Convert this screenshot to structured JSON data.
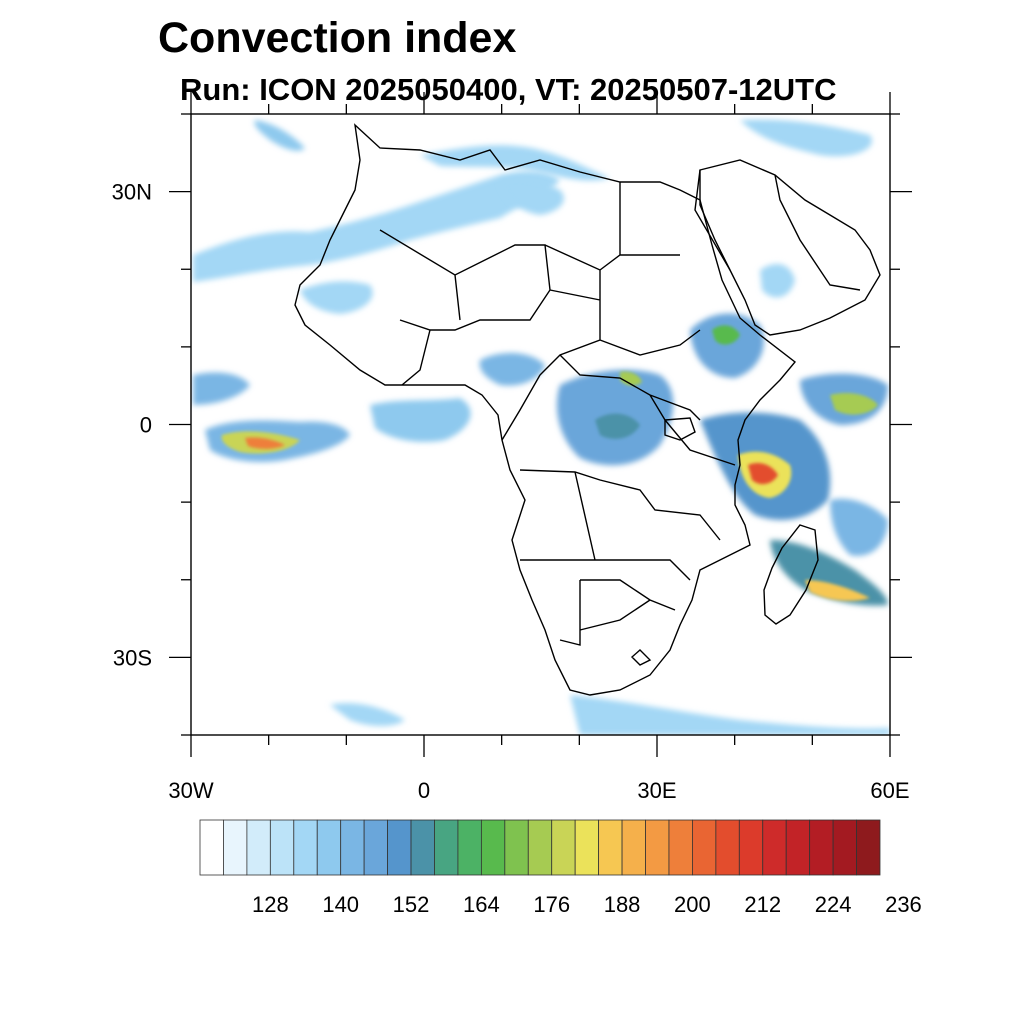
{
  "title": "Convection index",
  "subtitle": "Run: ICON 2025050400,  VT: 20250507-12UTC",
  "map": {
    "type": "geographic-map",
    "projection": "cylindrical equidistant",
    "lon_range": [
      -30,
      60
    ],
    "lat_range": [
      -40,
      40
    ],
    "lat_tick_labels": [
      {
        "lat": 30,
        "label": "30N"
      },
      {
        "lat": 0,
        "label": "0"
      },
      {
        "lat": -30,
        "label": "30S"
      }
    ],
    "lon_tick_labels": [
      {
        "lon": -30,
        "label": "30W"
      },
      {
        "lon": 0,
        "label": "0"
      },
      {
        "lon": 30,
        "label": "30E"
      },
      {
        "lon": 60,
        "label": "60E"
      }
    ],
    "minor_tick_step_deg": 10
  },
  "colorbar": {
    "colors": [
      "#ffffff",
      "#e8f5fd",
      "#d2ecfa",
      "#bce3f8",
      "#a3d7f5",
      "#8ec9ee",
      "#7ab6e4",
      "#6aa6da",
      "#5595cc",
      "#4b92a8",
      "#48a582",
      "#4cb265",
      "#58ba4d",
      "#7fc24f",
      "#a6cb52",
      "#c9d456",
      "#ebe25a",
      "#f6c752",
      "#f5b04b",
      "#f39a43",
      "#ee7f3a",
      "#e96533",
      "#e34d2d",
      "#dc3b2b",
      "#ce2b2a",
      "#c22327",
      "#b31d24",
      "#a31a21",
      "#8e1a1d"
    ],
    "tick_labels": [
      "128",
      "140",
      "152",
      "164",
      "176",
      "188",
      "200",
      "212",
      "224",
      "236"
    ],
    "tick_values": [
      128,
      140,
      152,
      164,
      176,
      188,
      200,
      212,
      224,
      236
    ]
  },
  "regions": [
    {
      "name": "atlantic-equatorial-band",
      "level": 6
    },
    {
      "name": "atlantic-equatorial-core",
      "level": 15
    },
    {
      "name": "atlantic-equatorial-hot",
      "level": 20
    },
    {
      "name": "east-africa-coast",
      "level": 8
    },
    {
      "name": "east-africa-coast-core",
      "level": 16
    },
    {
      "name": "east-africa-coast-hot",
      "level": 22
    },
    {
      "name": "congo-basin",
      "level": 7
    },
    {
      "name": "ethiopian-highlands",
      "level": 7
    },
    {
      "name": "southwest-indian-ocean",
      "level": 9
    },
    {
      "name": "southwest-indian-ocean-core",
      "level": 17
    },
    {
      "name": "north-africa-band",
      "level": 4
    },
    {
      "name": "southern-ocean-band",
      "level": 4
    }
  ]
}
